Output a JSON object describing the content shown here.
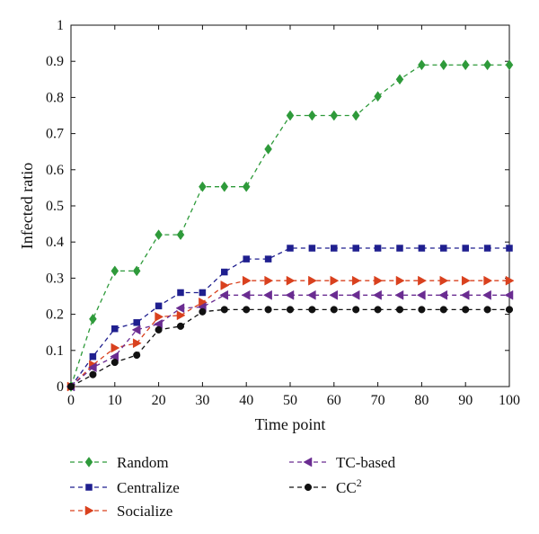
{
  "chart_data": {
    "type": "line",
    "title": "",
    "xlabel": "Time point",
    "ylabel": "Infected ratio",
    "xlim": [
      0,
      100
    ],
    "ylim": [
      0,
      1
    ],
    "xticks": [
      "0",
      "10",
      "20",
      "30",
      "40",
      "50",
      "60",
      "70",
      "80",
      "90",
      "100"
    ],
    "yticks": [
      "0",
      "0.1",
      "0.2",
      "0.3",
      "0.4",
      "0.5",
      "0.6",
      "0.7",
      "0.8",
      "0.9",
      "1"
    ],
    "grid": false,
    "legend_position": "bottom",
    "x": [
      0,
      5,
      10,
      15,
      20,
      25,
      30,
      35,
      40,
      45,
      50,
      55,
      60,
      65,
      70,
      75,
      80,
      85,
      90,
      95,
      100
    ],
    "series": [
      {
        "name": "Random",
        "color": "#2e9a3a",
        "marker": "diamond",
        "values": [
          0,
          0.187,
          0.32,
          0.32,
          0.42,
          0.42,
          0.553,
          0.553,
          0.553,
          0.657,
          0.75,
          0.75,
          0.75,
          0.75,
          0.803,
          0.85,
          0.89,
          0.89,
          0.89,
          0.89,
          0.89
        ]
      },
      {
        "name": "Centralize",
        "color": "#1f1f8f",
        "marker": "square",
        "values": [
          0,
          0.083,
          0.16,
          0.177,
          0.223,
          0.26,
          0.26,
          0.317,
          0.353,
          0.353,
          0.383,
          0.383,
          0.383,
          0.383,
          0.383,
          0.383,
          0.383,
          0.383,
          0.383,
          0.383,
          0.383
        ]
      },
      {
        "name": "Socialize",
        "color": "#d9411e",
        "marker": "triangle-right",
        "values": [
          0,
          0.06,
          0.107,
          0.12,
          0.193,
          0.197,
          0.233,
          0.28,
          0.293,
          0.293,
          0.293,
          0.293,
          0.293,
          0.293,
          0.293,
          0.293,
          0.293,
          0.293,
          0.293,
          0.293,
          0.293
        ]
      },
      {
        "name": "TC-based",
        "color": "#6a2c91",
        "marker": "triangle-left",
        "values": [
          0,
          0.053,
          0.083,
          0.157,
          0.173,
          0.217,
          0.22,
          0.253,
          0.253,
          0.253,
          0.253,
          0.253,
          0.253,
          0.253,
          0.253,
          0.253,
          0.253,
          0.253,
          0.253,
          0.253,
          0.253
        ]
      },
      {
        "name": "CC",
        "superscript": "2",
        "color": "#111111",
        "marker": "circle",
        "values": [
          0,
          0.033,
          0.067,
          0.087,
          0.157,
          0.167,
          0.207,
          0.213,
          0.213,
          0.213,
          0.213,
          0.213,
          0.213,
          0.213,
          0.213,
          0.213,
          0.213,
          0.213,
          0.213,
          0.213,
          0.213
        ]
      }
    ]
  }
}
